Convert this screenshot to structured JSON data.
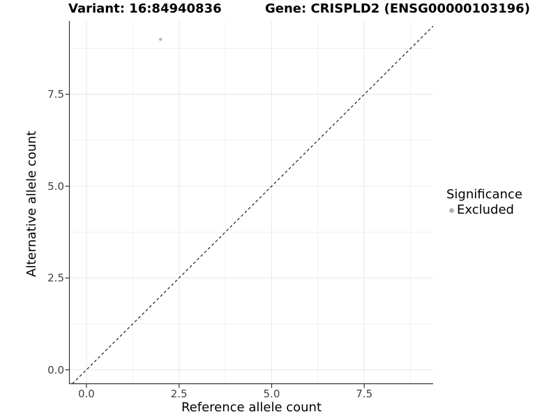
{
  "chart_data": {
    "type": "scatter",
    "titles": {
      "left": "Variant: 16:84940836",
      "right": "Gene: CRISPLD2 (ENSG00000103196)"
    },
    "xlabel": "Reference allele count",
    "ylabel": "Alternative allele count",
    "x_ticks": {
      "values": [
        0,
        2.5,
        5,
        7.5
      ],
      "labels": [
        "0.0",
        "2.5",
        "5.0",
        "7.5"
      ]
    },
    "y_ticks": {
      "values": [
        0,
        2.5,
        5,
        7.5
      ],
      "labels": [
        "0.0",
        "2.5",
        "5.0",
        "7.5"
      ]
    },
    "x_minor": [
      1.25,
      3.75,
      6.25,
      8.75
    ],
    "y_minor": [
      1.25,
      3.75,
      6.25,
      8.75
    ],
    "xlim": [
      -0.46,
      9.36
    ],
    "ylim": [
      -0.38,
      9.5
    ],
    "grid": true,
    "points": [
      {
        "x": 2,
        "y": 9,
        "significance": "Excluded",
        "radius": 2.2
      }
    ],
    "reference_line": {
      "type": "identity",
      "linetype": "dashed"
    },
    "legend": {
      "title": "Significance",
      "position": "right",
      "items": [
        {
          "label": "Excluded",
          "color": "#b3b3b3"
        }
      ]
    },
    "colors": {
      "point": "#b3b3b3",
      "grid_major": "#e9e9e9",
      "grid_minor": "#efefef",
      "axis": "#333333",
      "tick_text": "#404040",
      "reference_line": "#1a1a1a",
      "background": "#ffffff"
    }
  }
}
